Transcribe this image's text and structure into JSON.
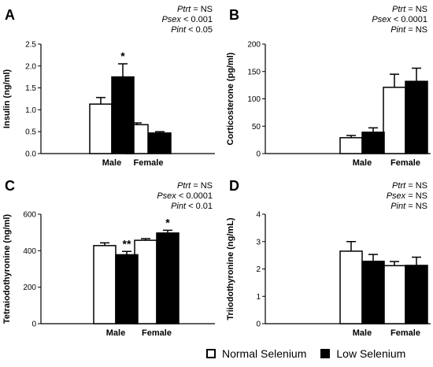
{
  "legend": {
    "series": [
      {
        "name": "Normal Selenium",
        "color": "#ffffff"
      },
      {
        "name": "Low Selenium",
        "color": "#000000"
      }
    ]
  },
  "chart_data": [
    {
      "panel": "A",
      "type": "bar",
      "ylabel": "Insulin (ng/ml)",
      "categories": [
        "Male",
        "Female"
      ],
      "ylim": [
        0,
        2.5
      ],
      "yticks": [
        "0.0",
        "0.5",
        "1.0",
        "1.5",
        "2.0",
        "2.5"
      ],
      "stats": [
        {
          "p": "P",
          "term": "trt",
          "rest": " = NS"
        },
        {
          "p": "P",
          "term": "sex",
          "rest": " < 0.001"
        },
        {
          "p": "P",
          "term": "int",
          "rest": " < 0.05"
        }
      ],
      "series": [
        {
          "name": "Normal Selenium",
          "values": [
            1.13,
            0.66
          ],
          "errors": [
            0.15,
            0.04
          ]
        },
        {
          "name": "Low Selenium",
          "values": [
            1.75,
            0.47
          ],
          "errors": [
            0.3,
            0.03
          ]
        }
      ],
      "annotations": [
        {
          "series": 1,
          "category": 0,
          "text": "*"
        }
      ]
    },
    {
      "panel": "B",
      "type": "bar",
      "ylabel": "Corticosterone (pg/ml)",
      "categories": [
        "Male",
        "Female"
      ],
      "ylim": [
        0,
        200
      ],
      "yticks": [
        "0",
        "50",
        "100",
        "150",
        "200"
      ],
      "stats": [
        {
          "p": "P",
          "term": "trt",
          "rest": " = NS"
        },
        {
          "p": "P",
          "term": "sex",
          "rest": " < 0.0001"
        },
        {
          "p": "P",
          "term": "int",
          "rest": " = NS"
        }
      ],
      "series": [
        {
          "name": "Normal Selenium",
          "values": [
            29,
            121
          ],
          "errors": [
            4,
            24
          ]
        },
        {
          "name": "Low Selenium",
          "values": [
            39,
            132
          ],
          "errors": [
            8,
            24
          ]
        }
      ],
      "annotations": []
    },
    {
      "panel": "C",
      "type": "bar",
      "ylabel": "Tetraiodothyronine (ng/ml)",
      "categories": [
        "Male",
        "Female"
      ],
      "ylim": [
        0,
        600
      ],
      "yticks": [
        "0",
        "200",
        "400",
        "600"
      ],
      "stats": [
        {
          "p": "P",
          "term": "trt",
          "rest": " = NS"
        },
        {
          "p": "P",
          "term": "sex",
          "rest": " < 0.0001"
        },
        {
          "p": "P",
          "term": "int",
          "rest": " < 0.01"
        }
      ],
      "series": [
        {
          "name": "Normal Selenium",
          "values": [
            428,
            457
          ],
          "errors": [
            15,
            9
          ]
        },
        {
          "name": "Low Selenium",
          "values": [
            378,
            497
          ],
          "errors": [
            18,
            15
          ]
        }
      ],
      "annotations": [
        {
          "series": 1,
          "category": 0,
          "text": "**"
        },
        {
          "series": 1,
          "category": 1,
          "text": "*"
        }
      ]
    },
    {
      "panel": "D",
      "type": "bar",
      "ylabel": "Triiodothyronine (ng/mL)",
      "categories": [
        "Male",
        "Female"
      ],
      "ylim": [
        0,
        4
      ],
      "yticks": [
        "0",
        "1",
        "2",
        "3",
        "4"
      ],
      "stats": [
        {
          "p": "P",
          "term": "trt",
          "rest": " = NS"
        },
        {
          "p": "P",
          "term": "sex",
          "rest": " = NS"
        },
        {
          "p": "P",
          "term": "int",
          "rest": " = NS"
        }
      ],
      "series": [
        {
          "name": "Normal Selenium",
          "values": [
            2.65,
            2.12
          ],
          "errors": [
            0.35,
            0.15
          ]
        },
        {
          "name": "Low Selenium",
          "values": [
            2.28,
            2.13
          ],
          "errors": [
            0.25,
            0.3
          ]
        }
      ],
      "annotations": []
    }
  ]
}
